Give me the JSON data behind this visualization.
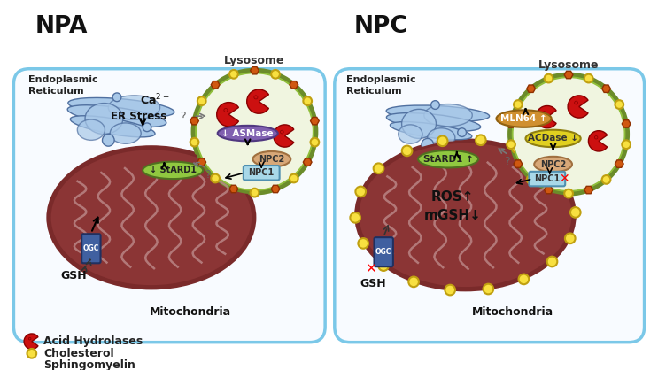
{
  "bg_color": "#ffffff",
  "panel_border": "#7bc8e8",
  "npa_title": "NPA",
  "npc_title": "NPC",
  "lysosome_label": "Lysosome",
  "er_label_npa": "Endoplasmic\nReticulum",
  "er_label_npc": "Endoplasmic\nReticulum",
  "ca_label": "Ca$^{2+}$",
  "er_stress_label": "ER Stress",
  "mito_label": "Mitochondria",
  "gsh_label": "GSH",
  "stard1_npa": "↓ StARD1",
  "stard1_npc": "StARD1 ↑",
  "ros_label": "ROS↑\nmGSH↓",
  "asmase_label": "↓ ASMase",
  "mln64_label": "MLN64 ↑",
  "acdase_label": "ACDase ↓",
  "npc2_label": "NPC2",
  "npc1_label": "NPC1",
  "ogc_label": "OGC",
  "legend_items": [
    "Acid Hydrolases",
    "Cholesterol",
    "Sphingomyelin"
  ],
  "mito_body": "#8b3535",
  "mito_outer": "#7a2a2a",
  "mito_crista": "#c09090",
  "lyso_ring_outer": "#6b8c2a",
  "lyso_ring_inner": "#8fbe3a",
  "lyso_fill": "#f0f5e0",
  "er_fill": "#a8c8e8",
  "er_dark": "#7090b8",
  "er_outline": "#5070a0",
  "stard1_color": "#90c840",
  "stard1_ec": "#507020",
  "asmase_fill": "#8060b0",
  "asmase_ec": "#503880",
  "npc2_fill": "#d8a878",
  "npc2_ec": "#a07040",
  "npc1_fill": "#a8d8e8",
  "npc1_ec": "#5090b0",
  "ogc_fill": "#4060a0",
  "ogc_ec": "#203060",
  "mln64_fill": "#d09030",
  "mln64_ec": "#906010",
  "acdase_fill": "#e0d020",
  "acdase_ec": "#908010",
  "cholesterol_fill": "#f8e040",
  "cholesterol_ec": "#c0a010",
  "sphingo_fill": "#d05810",
  "sphingo_ec": "#903000",
  "acid_fill": "#cc1010",
  "acid_ec": "#880000"
}
